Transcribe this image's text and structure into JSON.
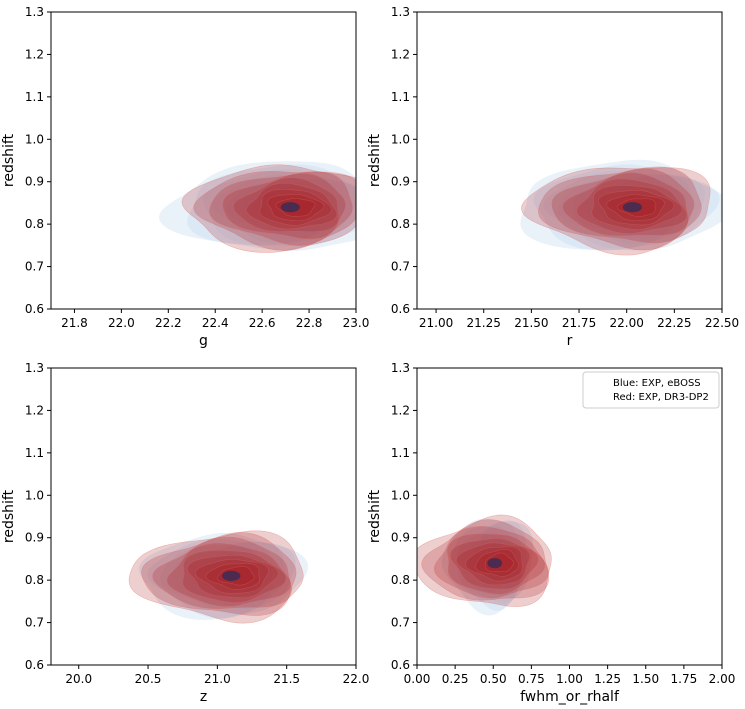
{
  "chart_data": [
    {
      "type": "kde-contour",
      "xlabel": "g",
      "ylabel": "redshift",
      "xlim": [
        21.7,
        23.0
      ],
      "ylim": [
        0.6,
        1.3
      ],
      "xticks": [
        "21.8",
        "22.0",
        "22.2",
        "22.4",
        "22.6",
        "22.8",
        "23.0"
      ],
      "yticks": [
        "0.6",
        "0.7",
        "0.8",
        "0.9",
        "1.0",
        "1.1",
        "1.2",
        "1.3"
      ],
      "series": [
        {
          "color": "#c6dbef",
          "peak": [
            22.72,
            0.84
          ],
          "sx": 0.38,
          "sy": 0.11
        },
        {
          "color": "#a50f15",
          "peak": [
            22.72,
            0.84
          ],
          "sx": 0.34,
          "sy": 0.1
        }
      ]
    },
    {
      "type": "kde-contour",
      "xlabel": "r",
      "ylabel": "redshift",
      "xlim": [
        20.9,
        22.5
      ],
      "ylim": [
        0.6,
        1.3
      ],
      "xticks": [
        "21.00",
        "21.25",
        "21.50",
        "21.75",
        "22.00",
        "22.25",
        "22.50"
      ],
      "yticks": [
        "0.6",
        "0.7",
        "0.8",
        "0.9",
        "1.0",
        "1.1",
        "1.2",
        "1.3"
      ],
      "series": [
        {
          "color": "#c6dbef",
          "peak": [
            22.03,
            0.84
          ],
          "sx": 0.45,
          "sy": 0.11
        },
        {
          "color": "#a50f15",
          "peak": [
            22.03,
            0.84
          ],
          "sx": 0.42,
          "sy": 0.1
        }
      ]
    },
    {
      "type": "kde-contour",
      "xlabel": "z",
      "ylabel": "redshift",
      "xlim": [
        19.8,
        22.0
      ],
      "ylim": [
        0.6,
        1.3
      ],
      "xticks": [
        "20.0",
        "20.5",
        "21.0",
        "21.5",
        "22.0"
      ],
      "yticks": [
        "0.6",
        "0.7",
        "0.8",
        "0.9",
        "1.0",
        "1.1",
        "1.2",
        "1.3"
      ],
      "series": [
        {
          "color": "#c6dbef",
          "peak": [
            21.1,
            0.81
          ],
          "sx": 0.5,
          "sy": 0.1
        },
        {
          "color": "#a50f15",
          "peak": [
            21.1,
            0.81
          ],
          "sx": 0.55,
          "sy": 0.1
        }
      ]
    },
    {
      "type": "kde-contour",
      "xlabel": "fwhm_or_rhalf",
      "ylabel": "redshift",
      "xlim": [
        0.0,
        2.0
      ],
      "ylim": [
        0.6,
        1.3
      ],
      "xticks": [
        "0.00",
        "0.25",
        "0.50",
        "0.75",
        "1.00",
        "1.25",
        "1.50",
        "1.75",
        "2.00"
      ],
      "yticks": [
        "0.6",
        "0.7",
        "0.8",
        "0.9",
        "1.0",
        "1.1",
        "1.2",
        "1.3"
      ],
      "series": [
        {
          "color": "#c6dbef",
          "peak": [
            0.51,
            0.84
          ],
          "sx": 0.25,
          "sy": 0.11
        },
        {
          "color": "#a50f15",
          "peak": [
            0.51,
            0.84
          ],
          "sx": 0.4,
          "sy": 0.1
        }
      ],
      "legend": {
        "placement": "top-right",
        "entries": [
          "Blue: EXP, eBOSS",
          "Red: EXP, DR3-DP2"
        ]
      }
    }
  ]
}
